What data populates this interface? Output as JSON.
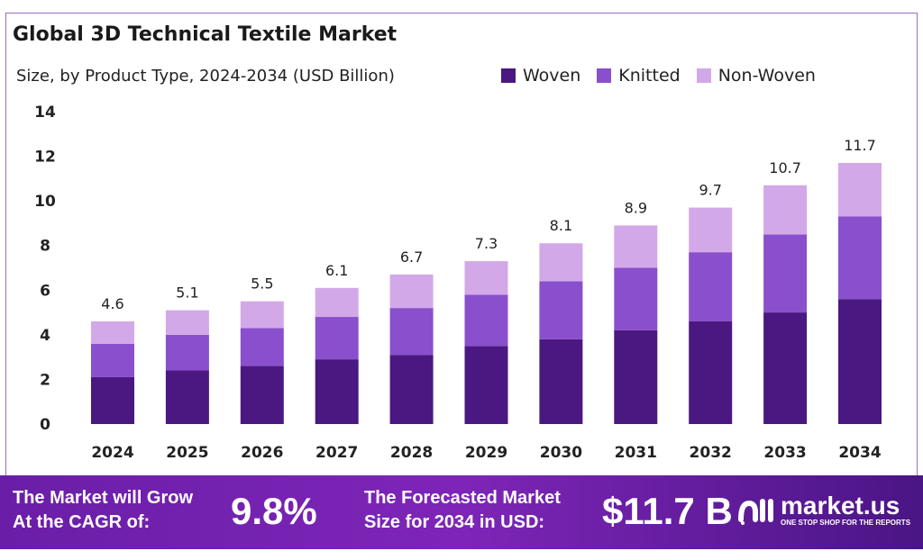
{
  "header": {
    "title": "Global 3D Technical Textile Market",
    "subtitle": "Size, by Product Type, 2024-2034 (USD Billion)"
  },
  "colors": {
    "woven": "#4a1880",
    "knitted": "#8a4fcc",
    "non_woven": "#d3a8e8"
  },
  "chart_data": {
    "type": "bar",
    "stacked": true,
    "title": "Global 3D Technical Textile Market",
    "subtitle": "Size, by Product Type, 2024-2034 (USD Billion)",
    "categories": [
      "2024",
      "2025",
      "2026",
      "2027",
      "2028",
      "2029",
      "2030",
      "2031",
      "2032",
      "2033",
      "2034"
    ],
    "series": [
      {
        "name": "Woven",
        "values": [
          2.1,
          2.4,
          2.6,
          2.9,
          3.1,
          3.5,
          3.8,
          4.2,
          4.6,
          5.0,
          5.6
        ]
      },
      {
        "name": "Knitted",
        "values": [
          1.5,
          1.6,
          1.7,
          1.9,
          2.1,
          2.3,
          2.6,
          2.8,
          3.1,
          3.5,
          3.7
        ]
      },
      {
        "name": "Non-Woven",
        "values": [
          1.0,
          1.1,
          1.2,
          1.3,
          1.5,
          1.5,
          1.7,
          1.9,
          2.0,
          2.2,
          2.4
        ]
      }
    ],
    "totals": [
      "4.6",
      "5.1",
      "5.5",
      "6.1",
      "6.7",
      "7.3",
      "8.1",
      "8.9",
      "9.7",
      "10.7",
      "11.7"
    ],
    "yticks": [
      "0",
      "2",
      "4",
      "6",
      "8",
      "10",
      "12",
      "14"
    ],
    "ylim": [
      0,
      14
    ],
    "grid": false,
    "legend": "top-right"
  },
  "footer": {
    "cagr_label_line1": "The Market will Grow",
    "cagr_label_line2": "At the CAGR of:",
    "cagr_value": "9.8%",
    "forecast_label_line1": "The Forecasted Market",
    "forecast_label_line2": "Size for 2034 in USD:",
    "forecast_value": "$11.7 B",
    "logo_name": "market.us",
    "logo_tagline": "ONE STOP SHOP FOR THE REPORTS"
  }
}
